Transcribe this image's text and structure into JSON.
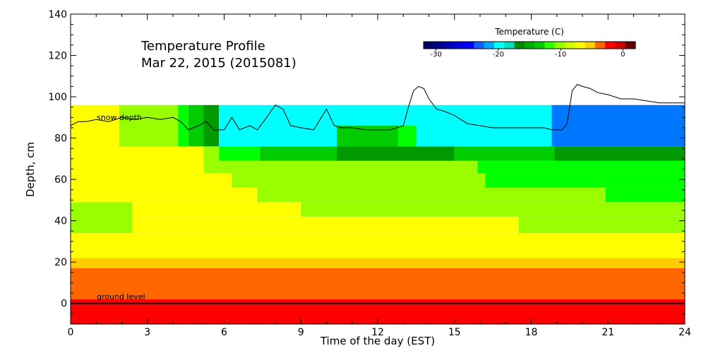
{
  "chart_data": {
    "type": "heatmap",
    "title": "Temperature Profile",
    "subtitle": "Mar 22, 2015 (2015081)",
    "xlabel": "Time of the day (EST)",
    "ylabel": "Depth, cm",
    "xlim": [
      0,
      24
    ],
    "ylim": [
      -10,
      140
    ],
    "xticks": [
      "0",
      "3",
      "6",
      "9",
      "12",
      "15",
      "18",
      "21",
      "24"
    ],
    "yticks": [
      "0",
      "20",
      "40",
      "60",
      "80",
      "100",
      "120",
      "140"
    ],
    "colorbar": {
      "title": "Temperature (C)",
      "ticks": [
        "-30",
        "-20",
        "-10",
        "0"
      ],
      "range": [
        -32,
        2
      ],
      "colors": [
        "#000066",
        "#00008b",
        "#0000b0",
        "#0000dd",
        "#0000ff",
        "#1060ff",
        "#00aaff",
        "#00ffff",
        "#00ddbb",
        "#008800",
        "#00aa00",
        "#00cc00",
        "#33ff00",
        "#99ff00",
        "#ccff00",
        "#ffff00",
        "#ffcc00",
        "#ff6600",
        "#ff0000",
        "#cc0000",
        "#660000"
      ]
    },
    "annotations": {
      "snow_depth_label": "snow depth",
      "ground_level_label": "ground level",
      "ground_level_y": 0
    },
    "legend_colors": {
      "red": "#ff0000",
      "orange": "#ff6600",
      "amber": "#ffcc00",
      "yellow": "#ffff00",
      "yellowgreen": "#99ff00",
      "green": "#00ff00",
      "darkgreen": "#00cc00",
      "darkergreen": "#009900",
      "cyan": "#00ffff",
      "blue": "#0077ff"
    },
    "series": [
      {
        "values": [
          {
            "x0": 0,
            "x1": 24,
            "y0": -10,
            "y1": 2,
            "color": "red"
          },
          {
            "x0": 0,
            "x1": 24,
            "y0": 2,
            "y1": 12,
            "color": "orange"
          },
          {
            "x0": 0,
            "x1": 24,
            "y0": 12,
            "y1": 17,
            "color": "orange"
          },
          {
            "x0": 0,
            "x1": 24,
            "y0": 17,
            "y1": 22,
            "color": "amber"
          },
          {
            "x0": 0,
            "x1": 24,
            "y0": 22,
            "y1": 34,
            "color": "yellow"
          },
          {
            "x0": 0,
            "x1": 2.4,
            "y0": 34,
            "y1": 49,
            "color": "yellowgreen"
          },
          {
            "x0": 2.4,
            "x1": 17.5,
            "y0": 34,
            "y1": 42,
            "color": "yellow"
          },
          {
            "x0": 17.5,
            "x1": 24,
            "y0": 34,
            "y1": 42,
            "color": "yellowgreen"
          },
          {
            "x0": 2.4,
            "x1": 9,
            "y0": 42,
            "y1": 49,
            "color": "yellow"
          },
          {
            "x0": 9,
            "x1": 24,
            "y0": 42,
            "y1": 49,
            "color": "yellowgreen"
          },
          {
            "x0": 0,
            "x1": 7.3,
            "y0": 49,
            "y1": 56,
            "color": "yellow"
          },
          {
            "x0": 7.3,
            "x1": 20.9,
            "y0": 49,
            "y1": 56,
            "color": "yellowgreen"
          },
          {
            "x0": 20.9,
            "x1": 24,
            "y0": 49,
            "y1": 56,
            "color": "green"
          },
          {
            "x0": 0,
            "x1": 6.3,
            "y0": 56,
            "y1": 63,
            "color": "yellow"
          },
          {
            "x0": 6.3,
            "x1": 16.2,
            "y0": 56,
            "y1": 63,
            "color": "yellowgreen"
          },
          {
            "x0": 16.2,
            "x1": 24,
            "y0": 56,
            "y1": 63,
            "color": "green"
          },
          {
            "x0": 0,
            "x1": 5.2,
            "y0": 63,
            "y1": 69,
            "color": "yellow"
          },
          {
            "x0": 5.2,
            "x1": 15.9,
            "y0": 63,
            "y1": 69,
            "color": "yellowgreen"
          },
          {
            "x0": 15.9,
            "x1": 24,
            "y0": 63,
            "y1": 69,
            "color": "green"
          },
          {
            "x0": 0,
            "x1": 5.2,
            "y0": 69,
            "y1": 76,
            "color": "yellow"
          },
          {
            "x0": 5.2,
            "x1": 5.8,
            "y0": 69,
            "y1": 76,
            "color": "yellowgreen"
          },
          {
            "x0": 5.8,
            "x1": 7.4,
            "y0": 69,
            "y1": 76,
            "color": "green"
          },
          {
            "x0": 7.4,
            "x1": 10.4,
            "y0": 69,
            "y1": 76,
            "color": "darkgreen"
          },
          {
            "x0": 10.4,
            "x1": 15,
            "y0": 69,
            "y1": 76,
            "color": "darkergreen"
          },
          {
            "x0": 15,
            "x1": 18.9,
            "y0": 69,
            "y1": 76,
            "color": "darkgreen"
          },
          {
            "x0": 18.9,
            "x1": 24,
            "y0": 69,
            "y1": 76,
            "color": "darkergreen"
          },
          {
            "x0": 0,
            "x1": 1.9,
            "y0": 76,
            "y1": 96,
            "color": "yellow"
          },
          {
            "x0": 1.9,
            "x1": 4.2,
            "y0": 76,
            "y1": 96,
            "color": "yellowgreen"
          },
          {
            "x0": 4.2,
            "x1": 4.6,
            "y0": 76,
            "y1": 96,
            "color": "green"
          },
          {
            "x0": 4.6,
            "x1": 5.2,
            "y0": 76,
            "y1": 96,
            "color": "darkgreen"
          },
          {
            "x0": 5.2,
            "x1": 5.8,
            "y0": 76,
            "y1": 96,
            "color": "darkergreen"
          },
          {
            "x0": 5.8,
            "x1": 18.8,
            "y0": 76,
            "y1": 96,
            "color": "cyan"
          },
          {
            "x0": 10.4,
            "x1": 12.8,
            "y0": 76,
            "y1": 86,
            "color": "darkgreen"
          },
          {
            "x0": 12.8,
            "x1": 13.5,
            "y0": 76,
            "y1": 86,
            "color": "green"
          },
          {
            "x0": 18.8,
            "x1": 24,
            "y0": 76,
            "y1": 96,
            "color": "blue"
          }
        ]
      },
      {
        "name": "snow depth",
        "x": [
          0,
          0.3,
          0.6,
          1,
          1.5,
          2,
          2.5,
          3,
          3.5,
          4,
          4.3,
          4.6,
          5,
          5.3,
          5.6,
          6,
          6.3,
          6.6,
          7,
          7.3,
          7.6,
          8,
          8.3,
          8.6,
          9,
          9.5,
          10,
          10.3,
          10.6,
          11,
          11.5,
          12,
          12.5,
          13,
          13.2,
          13.4,
          13.6,
          13.8,
          14,
          14.3,
          14.6,
          15,
          15.5,
          16,
          16.5,
          17,
          17.5,
          18,
          18.5,
          18.8,
          19.2,
          19.4,
          19.6,
          19.8,
          20,
          20.3,
          20.6,
          21,
          21.5,
          22,
          22.5,
          23,
          23.5,
          24
        ],
        "y": [
          86,
          88,
          88,
          89,
          88,
          90,
          89,
          90,
          89,
          90,
          88,
          84,
          86,
          88,
          84,
          84,
          90,
          84,
          86,
          84,
          89,
          96,
          94,
          86,
          85,
          84,
          94,
          86,
          85,
          85,
          84,
          84,
          84,
          86,
          95,
          103,
          105,
          104,
          99,
          94,
          93,
          91,
          87,
          86,
          85,
          85,
          85,
          85,
          85,
          84,
          84,
          87,
          103,
          106,
          105,
          104,
          102,
          101,
          99,
          99,
          98,
          97,
          97,
          97
        ]
      }
    ]
  }
}
